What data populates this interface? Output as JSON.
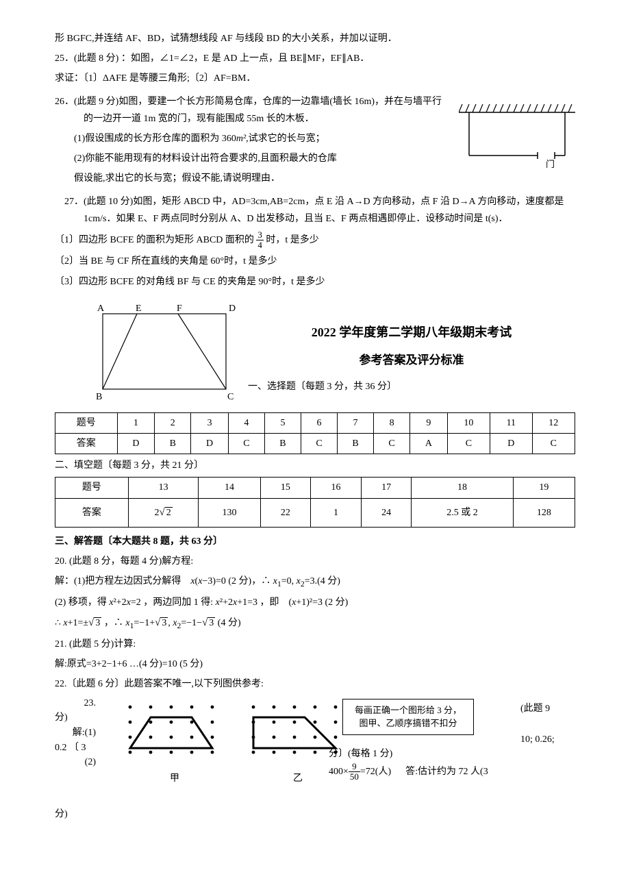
{
  "p24_cont": "形 BGFC,并连结 AF、BD，试猜想线段 AF 与线段 BD 的大小关系，并加以证明．",
  "p25": "25．(此题 8 分) ：如图，∠1=∠2，E 是 AD 上一点，且 BE∥MF，EF∥AB．",
  "p25_sub": "求证：〔1〕ΔAFE 是等腰三角形;〔2〕AF=BM．",
  "p26": "26．(此题 9 分)如图，要建一个长方形简易仓库，仓库的一边靠墙(墙长 16m)，并在与墙平行的一边开一道 1m 宽的门，现有能围成 55m 长的木板．",
  "p26_1": "(1)假设围成的长方形仓库的面积为 360",
  "p26_1b": ",试求它的长与宽；",
  "p26_2": "(2)你能不能用现有的材料设计出符合要求的,且面积最大的仓库",
  "p26_2b": "假设能,求出它的长与宽；假设不能,请说明理由．",
  "warehouse_door_label": "门",
  "p27": "27．(此题 10 分)如图，矩形 ABCD 中，AD=3cm,AB=2cm，点 E 沿 A→D 方向移动，点 F 沿 D→A 方向移动，速度都是 1cm/s．如果 E、F 两点同时分别从 A、D 出发移动，且当 E、F 两点相遇即停止．设移动时间是 t(s)．",
  "p27_1a": "〔1〕四边形 BCFE 的面积为矩形 ABCD 面积的",
  "p27_1b": "时，t 是多少",
  "p27_2": "〔2〕当 BE 与 CF 所在直线的夹角是 60°时，t 是多少",
  "p27_3": "〔3〕四边形 BCFE 的对角线 BF 与 CE 的夹角是 90°时，t 是多少",
  "answer_title1": "2022 学年度第二学期八年级期末考试",
  "answer_title2": "参考答案及评分标准",
  "sec1_hdr": "一、选择题〔每题 3 分，共 36 分〕",
  "table1": {
    "header_label": "题号",
    "answer_label": "答案",
    "nums": [
      "1",
      "2",
      "3",
      "4",
      "5",
      "6",
      "7",
      "8",
      "9",
      "10",
      "11",
      "12"
    ],
    "ans": [
      "D",
      "B",
      "D",
      "C",
      "B",
      "C",
      "B",
      "C",
      "A",
      "C",
      "D",
      "C"
    ]
  },
  "sec2_hdr": "二、填空题〔每题 3 分，共 21 分〕",
  "table2": {
    "header_label": "题号",
    "answer_label": "答案",
    "nums": [
      "13",
      "14",
      "15",
      "16",
      "17",
      "18",
      "19"
    ],
    "ans": [
      "2√2",
      "130",
      "22",
      "1",
      "24",
      "2.5 或 2",
      "128"
    ]
  },
  "sec3_hdr": "三、解答题〔本大题共 8 题，共 63 分〕",
  "p20": "20. (此题 8 分，每题 4 分)解方程:",
  "p20_1": "解：(1)把方程左边因式分解得　x(x−3)=0 (2 分)，∴ x₁=0, x₂=3.(4 分)",
  "p20_2a": "(2) 移项，得 x²+2x=2 ，两边同加 1 得: x²+2x+1=3 ，即　(x+1)²=3 (2 分)",
  "p20_2b": "∴ x+1=±√3 ，∴ x₁=−1+√3, x₂=−1−√3 (4 分)",
  "p21": "21. (此题 5 分)计算:",
  "p21_sol": "解:原式=3+2−1+6 …(4 分)=10 (5 分)",
  "p22": "22.〔此题 6 分〕此题答案不唯一,以下列图供参考:",
  "fig_jia": "甲",
  "fig_yi": "乙",
  "box_line1": "每画正确一个图形给 3 分，",
  "box_line2": "图甲、乙顺序搞错不扣分",
  "p23a": "23.",
  "p23b": "(此题 9",
  "p23c": "分)",
  "p23d": "解:(1)",
  "p23e": "10; 0.26;",
  "p23f": "0.2 〔 3",
  "p23g": "分〕(每格 1 分)",
  "p23h": "(2)",
  "p23i": "答:估计约为 72 人(3",
  "p23j": "分)",
  "frac34": {
    "n": "3",
    "d": "4"
  },
  "m2": "m²",
  "frac950": {
    "n": "9",
    "d": "50"
  },
  "calc72": "400×",
  "calc72b": "=72(人)",
  "rect_labels": {
    "A": "A",
    "B": "B",
    "C": "C",
    "D": "D",
    "E": "E",
    "F": "F"
  }
}
